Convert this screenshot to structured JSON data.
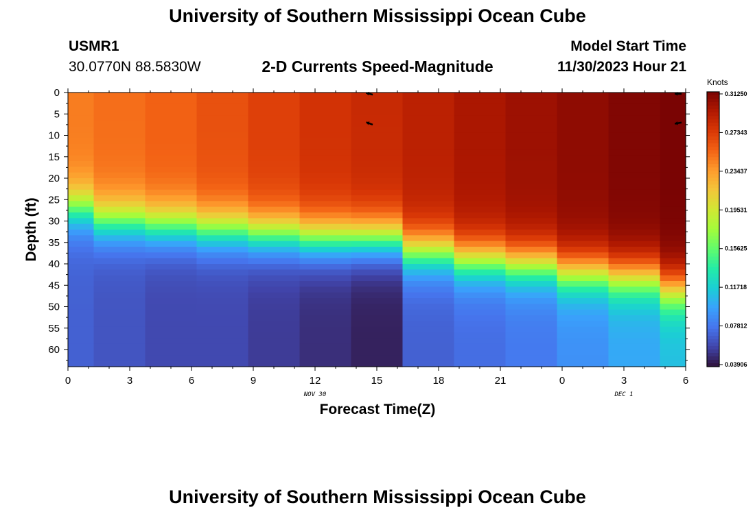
{
  "header": {
    "title": "University of Southern Mississippi Ocean Cube",
    "station_id": "USMR1",
    "station_coords": "30.0770N  88.5830W",
    "plot_title": "2-D Currents Speed-Magnitude",
    "model_start_label": "Model Start Time",
    "model_start_value": "11/30/2023 Hour 21"
  },
  "footer": {
    "title": "University of Southern Mississippi Ocean Cube"
  },
  "chart_data": {
    "type": "heatmap",
    "title": "2-D Currents Speed-Magnitude",
    "xlabel": "Forecast Time(Z)",
    "ylabel": "Depth (ft)",
    "x_tick_labels": [
      "0",
      "3",
      "6",
      "9",
      "12",
      "15",
      "18",
      "21",
      "0",
      "3",
      "6"
    ],
    "x_range_hours": [
      0,
      30
    ],
    "date_labels": [
      {
        "text": "NOV 30",
        "hour": 12
      },
      {
        "text": "DEC 1",
        "hour": 27
      }
    ],
    "y_tick_labels": [
      "0",
      "5",
      "10",
      "15",
      "20",
      "25",
      "30",
      "35",
      "40",
      "45",
      "50",
      "55",
      "60"
    ],
    "y_range_ft": [
      0,
      64
    ],
    "colorbar": {
      "unit": "Knots",
      "min": 0.039,
      "max": 0.3125,
      "tick_labels": [
        "0.31250",
        "0.27343",
        "0.23437",
        "0.19531",
        "0.15625",
        "0.11718",
        "0.07812",
        "0.03906"
      ],
      "palette": [
        "#30123b",
        "#4145ab",
        "#4675ed",
        "#39a2fc",
        "#1bcfd4",
        "#24eca6",
        "#61fc6c",
        "#a4fc3b",
        "#d1e834",
        "#f3c63a",
        "#fe9b2d",
        "#f36315",
        "#d93806",
        "#b11901",
        "#7a0403"
      ]
    },
    "time_columns_hours": [
      0,
      2.5,
      5,
      7.5,
      10,
      12.5,
      15,
      17.5,
      20,
      22.5,
      25,
      27.5,
      30
    ],
    "surface_speed_knots": [
      0.245,
      0.25,
      0.255,
      0.262,
      0.27,
      0.277,
      0.282,
      0.288,
      0.295,
      0.3,
      0.305,
      0.31,
      0.3125
    ],
    "gradient_mid_depth_ft": [
      27,
      30,
      31,
      32,
      33,
      34,
      34,
      37,
      39,
      40,
      42,
      43,
      46
    ],
    "gradient_width_ft": 10,
    "bottom_speed_knots": [
      0.07,
      0.065,
      0.06,
      0.06,
      0.055,
      0.05,
      0.045,
      0.07,
      0.075,
      0.08,
      0.09,
      0.1,
      0.11
    ],
    "vectors": [
      {
        "hour": 14.8,
        "depth_ft": 0.5,
        "dir_deg": 195
      },
      {
        "hour": 14.8,
        "depth_ft": 7.5,
        "dir_deg": 200
      },
      {
        "hour": 29.8,
        "depth_ft": 0.3,
        "dir_deg": 180
      },
      {
        "hour": 29.8,
        "depth_ft": 7,
        "dir_deg": 170
      }
    ]
  }
}
